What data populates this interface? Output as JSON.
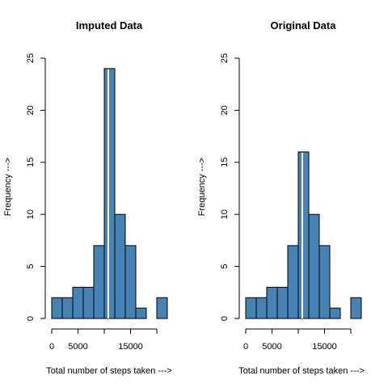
{
  "chart_data": [
    {
      "type": "bar",
      "title": "Imputed Data",
      "xlabel": "Total number of steps taken --->",
      "ylabel": "Frequency --->",
      "bin_edges": [
        0,
        2000,
        4000,
        6000,
        8000,
        10000,
        12000,
        14000,
        16000,
        18000,
        20000,
        22000
      ],
      "values": [
        2,
        2,
        3,
        3,
        7,
        24,
        10,
        7,
        1,
        0,
        2
      ],
      "xlim": [
        0,
        22000
      ],
      "ylim": [
        0,
        25
      ],
      "x_ticks": [
        0,
        5000,
        15000
      ],
      "y_ticks": [
        0,
        5,
        10,
        15,
        20,
        25
      ],
      "mean_line": 10766,
      "bar_color": "#4682b4",
      "grid": false
    },
    {
      "type": "bar",
      "title": "Original Data",
      "xlabel": "Total number of steps taken --->",
      "ylabel": "Frequency --->",
      "bin_edges": [
        0,
        2000,
        4000,
        6000,
        8000,
        10000,
        12000,
        14000,
        16000,
        18000,
        20000,
        22000
      ],
      "values": [
        2,
        2,
        3,
        3,
        7,
        16,
        10,
        7,
        1,
        0,
        2
      ],
      "xlim": [
        0,
        22000
      ],
      "ylim": [
        0,
        25
      ],
      "x_ticks": [
        0,
        5000,
        15000
      ],
      "y_ticks": [
        0,
        5,
        10,
        15,
        20,
        25
      ],
      "mean_line": 10766,
      "bar_color": "#4682b4",
      "grid": false
    }
  ]
}
